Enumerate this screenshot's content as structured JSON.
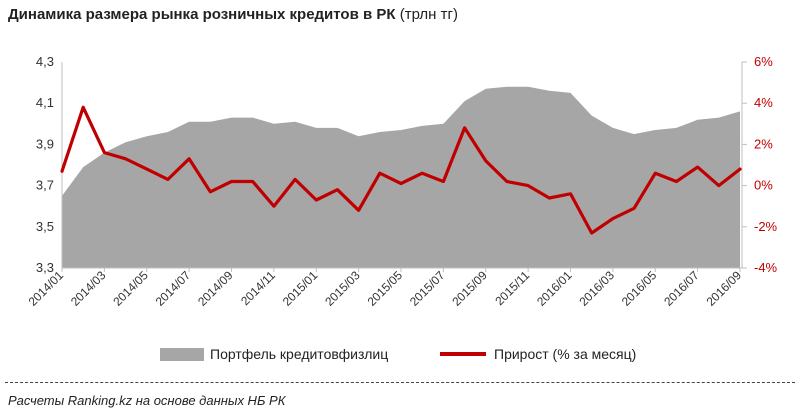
{
  "title": {
    "bold": "Динамика размера рынка розничных кредитов в РК",
    "unit": "(трлн тг)"
  },
  "chart_data": {
    "type": "area+line",
    "months": [
      "2014/01",
      "2014/02",
      "2014/03",
      "2014/04",
      "2014/05",
      "2014/06",
      "2014/07",
      "2014/08",
      "2014/09",
      "2014/10",
      "2014/11",
      "2014/12",
      "2015/01",
      "2015/02",
      "2015/03",
      "2015/04",
      "2015/05",
      "2015/06",
      "2015/07",
      "2015/08",
      "2015/09",
      "2015/10",
      "2015/11",
      "2015/12",
      "2016/01",
      "2016/02",
      "2016/03",
      "2016/04",
      "2016/05",
      "2016/06",
      "2016/07",
      "2016/08",
      "2016/09"
    ],
    "x_tick_labels": [
      "2014/01",
      "2014/03",
      "2014/05",
      "2014/07",
      "2014/09",
      "2014/11",
      "2015/01",
      "2015/03",
      "2015/05",
      "2015/07",
      "2015/09",
      "2015/11",
      "2016/01",
      "2016/03",
      "2016/05",
      "2016/07",
      "2016/09"
    ],
    "left_axis": {
      "min": 3.3,
      "max": 4.3,
      "ticks": [
        "4,3",
        "4,1",
        "3,9",
        "3,7",
        "3,5",
        "3,3"
      ],
      "tick_values": [
        4.3,
        4.1,
        3.9,
        3.7,
        3.5,
        3.3
      ]
    },
    "right_axis": {
      "min": -4,
      "max": 6,
      "ticks": [
        "6%",
        "4%",
        "2%",
        "0%",
        "-2%",
        "-4%"
      ],
      "tick_values": [
        6,
        4,
        2,
        0,
        -2,
        -4
      ]
    },
    "series": [
      {
        "name": "Портфель кредитовфизлиц",
        "kind": "area",
        "axis": "left",
        "color": "#a6a6a6",
        "values": [
          3.65,
          3.79,
          3.86,
          3.91,
          3.94,
          3.96,
          4.01,
          4.01,
          4.03,
          4.03,
          4.0,
          4.01,
          3.98,
          3.98,
          3.94,
          3.96,
          3.97,
          3.99,
          4.0,
          4.11,
          4.17,
          4.18,
          4.18,
          4.16,
          4.15,
          4.04,
          3.98,
          3.95,
          3.97,
          3.98,
          4.02,
          4.03,
          4.06
        ]
      },
      {
        "name": "Прирост (% за месяц)",
        "kind": "line",
        "axis": "right",
        "color": "#c00000",
        "values": [
          0.7,
          3.8,
          1.6,
          1.3,
          0.8,
          0.3,
          1.3,
          -0.3,
          0.2,
          0.2,
          -1.0,
          0.3,
          -0.7,
          -0.2,
          -1.2,
          0.6,
          0.1,
          0.6,
          0.2,
          2.8,
          1.2,
          0.2,
          0.0,
          -0.6,
          -0.4,
          -2.3,
          -1.6,
          -1.1,
          0.6,
          0.2,
          0.9,
          0.0,
          0.8
        ]
      }
    ]
  },
  "legend": {
    "area_label": "Портфель кредитовфизлиц",
    "line_label": "Прирост (% за месяц)"
  },
  "source": "Расчеты Ranking.kz на основе данных НБ РК"
}
